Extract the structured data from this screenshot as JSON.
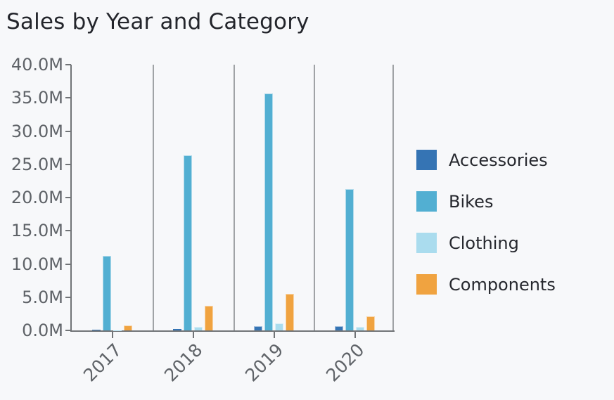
{
  "title": "Sales by Year and Category",
  "chart_data": {
    "type": "bar",
    "title": "Sales by Year and Category",
    "categories": [
      "2017",
      "2018",
      "2019",
      "2020"
    ],
    "series": [
      {
        "name": "Accessories",
        "color": "#3574B4",
        "values": [
          0.1,
          0.25,
          0.65,
          0.6
        ]
      },
      {
        "name": "Bikes",
        "color": "#52AFD2",
        "values": [
          11.2,
          26.3,
          35.7,
          21.3
        ]
      },
      {
        "name": "Clothing",
        "color": "#AADCEE",
        "values": [
          0.05,
          0.55,
          1.05,
          0.55
        ]
      },
      {
        "name": "Components",
        "color": "#F0A340",
        "values": [
          0.7,
          3.7,
          5.5,
          2.1
        ]
      }
    ],
    "unit": "M",
    "xlabel": "",
    "ylabel": "",
    "ylim": [
      0,
      40
    ],
    "ytick_step": 5,
    "ytick_labels": [
      "0.0M",
      "5.0M",
      "10.0M",
      "15.0M",
      "20.0M",
      "25.0M",
      "30.0M",
      "35.0M",
      "40.0M"
    ],
    "grid": "vertical group separators only, no horizontal gridlines",
    "legend_position": "right",
    "bar_orientation": "vertical, grouped"
  },
  "colors": {
    "background": "#F7F8FA",
    "title_text": "#23252B",
    "axis_line": "#717477",
    "separator_line": "#A0A3A6",
    "tick_label_text": "#5F6368",
    "legend_text": "#26282E",
    "accessories": "#3574B4",
    "bikes": "#52AFD2",
    "clothing": "#AADCEE",
    "components": "#F0A340"
  }
}
